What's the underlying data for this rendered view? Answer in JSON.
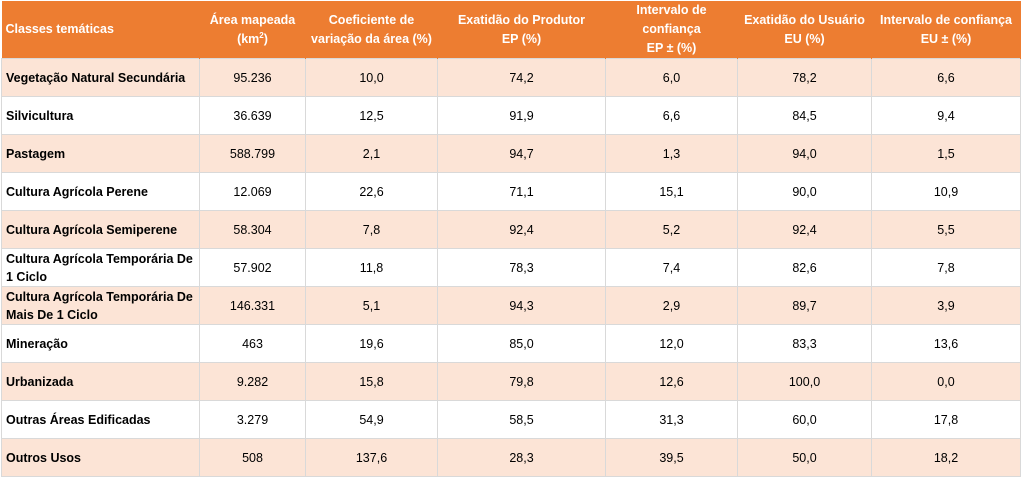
{
  "colors": {
    "header_bg": "#ED7D31",
    "stripe": "#FCE4D6",
    "border": "#D9D9D9"
  },
  "headers": {
    "c0": "Classes temáticas",
    "c1a": "Área mapeada",
    "c1b": "(km",
    "c1sup": "2",
    "c1c": ")",
    "c2a": "Coeficiente de",
    "c2b": "variação da área (%)",
    "c3a": "Exatidão do Produtor",
    "c3b": "EP (%)",
    "c4a": "Intervalo de confiança",
    "c4b": "EP ± (%)",
    "c5a": "Exatidão do Usuário",
    "c5b": "EU (%)",
    "c6a": "Intervalo de confiança",
    "c6b": "EU ± (%)"
  },
  "rows": [
    [
      "Vegetação Natural Secundária",
      "95.236",
      "10,0",
      "74,2",
      "6,0",
      "78,2",
      "6,6"
    ],
    [
      "Silvicultura",
      "36.639",
      "12,5",
      "91,9",
      "6,6",
      "84,5",
      "9,4"
    ],
    [
      "Pastagem",
      "588.799",
      "2,1",
      "94,7",
      "1,3",
      "94,0",
      "1,5"
    ],
    [
      "Cultura Agrícola Perene",
      "12.069",
      "22,6",
      "71,1",
      "15,1",
      "90,0",
      "10,9"
    ],
    [
      "Cultura Agrícola Semiperene",
      "58.304",
      "7,8",
      "92,4",
      "5,2",
      "92,4",
      "5,5"
    ],
    [
      "Cultura Agrícola Temporária De 1 Ciclo",
      "57.902",
      "11,8",
      "78,3",
      "7,4",
      "82,6",
      "7,8"
    ],
    [
      "Cultura Agrícola Temporária De Mais De 1 Ciclo",
      "146.331",
      "5,1",
      "94,3",
      "2,9",
      "89,7",
      "3,9"
    ],
    [
      "Mineração",
      "463",
      "19,6",
      "85,0",
      "12,0",
      "83,3",
      "13,6"
    ],
    [
      "Urbanizada",
      "9.282",
      "15,8",
      "79,8",
      "12,6",
      "100,0",
      "0,0"
    ],
    [
      "Outras Áreas Edificadas",
      "3.279",
      "54,9",
      "58,5",
      "31,3",
      "60,0",
      "17,8"
    ],
    [
      "Outros Usos",
      "508",
      "137,6",
      "28,3",
      "39,5",
      "50,0",
      "18,2"
    ]
  ]
}
